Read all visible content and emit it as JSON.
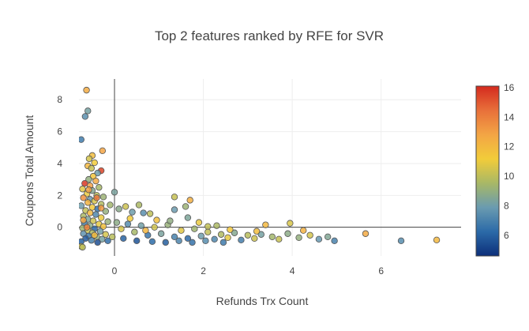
{
  "chart_data": {
    "type": "scatter",
    "title": "Top 2 features ranked by RFE for SVR",
    "xlabel": "Refunds Trx Count",
    "ylabel": "Coupons Total Amount",
    "xlim": [
      -0.8,
      7.8
    ],
    "ylim": [
      -1.8,
      9.3
    ],
    "x_ticks": [
      0,
      2,
      4,
      6
    ],
    "x_tick_labels": [
      "0",
      "2",
      "4",
      "6"
    ],
    "y_ticks": [
      0,
      2,
      4,
      6,
      8
    ],
    "y_tick_labels": [
      "0",
      "2",
      "4",
      "6",
      "8"
    ],
    "grid": true,
    "colorbar": {
      "range": [
        4.6,
        16.1
      ],
      "ticks": [
        6,
        8,
        10,
        12,
        14,
        16
      ],
      "tick_labels": [
        "6",
        "8",
        "10",
        "12",
        "14",
        "16"
      ],
      "colorscale": [
        "#0d2f7a",
        "#2b6aa8",
        "#6a9bb0",
        "#a8b866",
        "#f2cc3a",
        "#f3a545",
        "#e8703a",
        "#d42a1e"
      ]
    },
    "points": [
      {
        "x": -0.63,
        "y": 8.6,
        "c": 12.5
      },
      {
        "x": -0.6,
        "y": 7.3,
        "c": 8.2
      },
      {
        "x": -0.66,
        "y": 6.95,
        "c": 7.5
      },
      {
        "x": -0.75,
        "y": 5.5,
        "c": 6.8
      },
      {
        "x": -0.27,
        "y": 4.8,
        "c": 12.8
      },
      {
        "x": -0.5,
        "y": 4.5,
        "c": 11.8
      },
      {
        "x": -0.57,
        "y": 4.3,
        "c": 10.5
      },
      {
        "x": -0.45,
        "y": 4.05,
        "c": 11.2
      },
      {
        "x": -0.6,
        "y": 3.85,
        "c": 12.0
      },
      {
        "x": -0.52,
        "y": 3.7,
        "c": 10.2
      },
      {
        "x": -0.3,
        "y": 3.55,
        "c": 15.5
      },
      {
        "x": -0.38,
        "y": 3.4,
        "c": 8.0
      },
      {
        "x": -0.48,
        "y": 3.2,
        "c": 11.5
      },
      {
        "x": -0.58,
        "y": 3.0,
        "c": 9.0
      },
      {
        "x": -0.42,
        "y": 2.9,
        "c": 12.6
      },
      {
        "x": -0.67,
        "y": 2.75,
        "c": 15.8
      },
      {
        "x": -0.55,
        "y": 2.6,
        "c": 13.0
      },
      {
        "x": -0.35,
        "y": 2.5,
        "c": 9.5
      },
      {
        "x": -0.72,
        "y": 2.4,
        "c": 10.8
      },
      {
        "x": -0.5,
        "y": 2.3,
        "c": 8.6
      },
      {
        "x": 0.0,
        "y": 2.2,
        "c": 8.3
      },
      {
        "x": -0.62,
        "y": 2.1,
        "c": 11.0
      },
      {
        "x": -0.4,
        "y": 2.0,
        "c": 10.0
      },
      {
        "x": -0.25,
        "y": 1.9,
        "c": 9.2
      },
      {
        "x": -0.7,
        "y": 1.85,
        "c": 13.5
      },
      {
        "x": -0.55,
        "y": 1.75,
        "c": 7.8
      },
      {
        "x": -0.45,
        "y": 1.65,
        "c": 10.6
      },
      {
        "x": -0.6,
        "y": 1.55,
        "c": 12.2
      },
      {
        "x": -0.3,
        "y": 1.45,
        "c": 9.8
      },
      {
        "x": -0.75,
        "y": 1.35,
        "c": 8.0
      },
      {
        "x": -0.5,
        "y": 1.25,
        "c": 11.3
      },
      {
        "x": -0.38,
        "y": 1.15,
        "c": 6.5
      },
      {
        "x": -0.65,
        "y": 1.05,
        "c": 10.1
      },
      {
        "x": -0.2,
        "y": 1.0,
        "c": 9.0
      },
      {
        "x": -0.55,
        "y": 0.9,
        "c": 12.0
      },
      {
        "x": -0.42,
        "y": 0.8,
        "c": 7.2
      },
      {
        "x": -0.7,
        "y": 0.7,
        "c": 9.6
      },
      {
        "x": -0.3,
        "y": 0.6,
        "c": 11.0
      },
      {
        "x": -0.6,
        "y": 0.5,
        "c": 8.4
      },
      {
        "x": -0.48,
        "y": 0.4,
        "c": 10.4
      },
      {
        "x": -0.15,
        "y": 0.35,
        "c": 9.1
      },
      {
        "x": -0.68,
        "y": 0.25,
        "c": 7.0
      },
      {
        "x": -0.35,
        "y": 0.2,
        "c": 10.9
      },
      {
        "x": -0.55,
        "y": 0.1,
        "c": 8.8
      },
      {
        "x": -0.25,
        "y": 0.05,
        "c": 11.6
      },
      {
        "x": -0.72,
        "y": -0.05,
        "c": 9.3
      },
      {
        "x": -0.45,
        "y": -0.1,
        "c": 6.2
      },
      {
        "x": -0.6,
        "y": -0.2,
        "c": 10.2
      },
      {
        "x": -0.32,
        "y": -0.25,
        "c": 8.1
      },
      {
        "x": -0.5,
        "y": -0.35,
        "c": 9.7
      },
      {
        "x": -0.7,
        "y": -0.4,
        "c": 7.6
      },
      {
        "x": -0.2,
        "y": -0.45,
        "c": 10.5
      },
      {
        "x": -0.58,
        "y": -0.55,
        "c": 6.8
      },
      {
        "x": -0.4,
        "y": -0.6,
        "c": 9.0
      },
      {
        "x": -0.65,
        "y": -0.7,
        "c": 5.8
      },
      {
        "x": -0.28,
        "y": -0.75,
        "c": 8.2
      },
      {
        "x": -0.52,
        "y": -0.82,
        "c": 7.0
      },
      {
        "x": -0.15,
        "y": -0.85,
        "c": 6.4
      },
      {
        "x": -0.75,
        "y": -0.9,
        "c": 6.0
      },
      {
        "x": -0.38,
        "y": -0.95,
        "c": 5.5
      },
      {
        "x": -0.75,
        "y": -1.2,
        "c": 10.5
      },
      {
        "x": -0.72,
        "y": -1.25,
        "c": 10.0
      },
      {
        "x": -0.1,
        "y": 1.4,
        "c": 9.4
      },
      {
        "x": 0.1,
        "y": 1.15,
        "c": 8.7
      },
      {
        "x": 0.25,
        "y": 1.3,
        "c": 10.3
      },
      {
        "x": 0.4,
        "y": 0.95,
        "c": 8.0
      },
      {
        "x": 0.55,
        "y": 1.4,
        "c": 9.6
      },
      {
        "x": 0.65,
        "y": 0.9,
        "c": 7.5
      },
      {
        "x": 0.8,
        "y": 0.85,
        "c": 10.0
      },
      {
        "x": 1.35,
        "y": 1.9,
        "c": 10.2
      },
      {
        "x": 1.35,
        "y": 1.1,
        "c": 7.9
      },
      {
        "x": 1.6,
        "y": 1.3,
        "c": 9.2
      },
      {
        "x": 1.7,
        "y": 1.7,
        "c": 12.4
      },
      {
        "x": 1.65,
        "y": 0.6,
        "c": 8.4
      },
      {
        "x": 2.1,
        "y": 0.05,
        "c": 10.1
      },
      {
        "x": 0.05,
        "y": 0.3,
        "c": 8.8
      },
      {
        "x": 0.15,
        "y": -0.1,
        "c": 10.6
      },
      {
        "x": 0.3,
        "y": 0.2,
        "c": 7.4
      },
      {
        "x": 0.45,
        "y": -0.3,
        "c": 9.5
      },
      {
        "x": 0.6,
        "y": 0.1,
        "c": 8.1
      },
      {
        "x": 0.75,
        "y": -0.5,
        "c": 6.6
      },
      {
        "x": 0.9,
        "y": 0.0,
        "c": 10.4
      },
      {
        "x": 1.05,
        "y": -0.4,
        "c": 8.3
      },
      {
        "x": 1.2,
        "y": 0.15,
        "c": 9.1
      },
      {
        "x": 1.35,
        "y": -0.6,
        "c": 7.0
      },
      {
        "x": 1.5,
        "y": -0.2,
        "c": 10.8
      },
      {
        "x": 1.65,
        "y": -0.7,
        "c": 6.2
      },
      {
        "x": 1.8,
        "y": -0.1,
        "c": 9.3
      },
      {
        "x": 1.95,
        "y": -0.55,
        "c": 8.0
      },
      {
        "x": 2.1,
        "y": -0.3,
        "c": 10.1
      },
      {
        "x": 2.25,
        "y": -0.75,
        "c": 7.2
      },
      {
        "x": 2.4,
        "y": -0.45,
        "c": 9.7
      },
      {
        "x": 2.55,
        "y": -0.65,
        "c": 10.9
      },
      {
        "x": 2.7,
        "y": -0.35,
        "c": 8.6
      },
      {
        "x": 2.85,
        "y": -0.8,
        "c": 6.9
      },
      {
        "x": 3.0,
        "y": -0.5,
        "c": 9.9
      },
      {
        "x": 3.15,
        "y": -0.7,
        "c": 10.3
      },
      {
        "x": 3.3,
        "y": -0.45,
        "c": 8.2
      },
      {
        "x": 3.4,
        "y": 0.15,
        "c": 12.0
      },
      {
        "x": 3.55,
        "y": -0.6,
        "c": 9.4
      },
      {
        "x": 3.7,
        "y": -0.75,
        "c": 10.2
      },
      {
        "x": 3.9,
        "y": -0.4,
        "c": 8.8
      },
      {
        "x": 3.95,
        "y": 0.25,
        "c": 10.6
      },
      {
        "x": 4.15,
        "y": -0.65,
        "c": 9.0
      },
      {
        "x": 4.25,
        "y": -0.2,
        "c": 12.3
      },
      {
        "x": 4.4,
        "y": -0.5,
        "c": 10.5
      },
      {
        "x": 4.6,
        "y": -0.75,
        "c": 7.8
      },
      {
        "x": 4.8,
        "y": -0.6,
        "c": 8.5
      },
      {
        "x": 4.95,
        "y": -0.85,
        "c": 7.0
      },
      {
        "x": 5.65,
        "y": -0.4,
        "c": 12.6
      },
      {
        "x": 6.45,
        "y": -0.85,
        "c": 7.4
      },
      {
        "x": 7.25,
        "y": -0.8,
        "c": 12.0
      },
      {
        "x": 0.2,
        "y": -0.7,
        "c": 6.0
      },
      {
        "x": 0.5,
        "y": -0.85,
        "c": 5.6
      },
      {
        "x": 0.85,
        "y": -0.9,
        "c": 6.3
      },
      {
        "x": 1.15,
        "y": -0.95,
        "c": 5.9
      },
      {
        "x": 1.45,
        "y": -0.85,
        "c": 7.1
      },
      {
        "x": 1.75,
        "y": -0.95,
        "c": 6.5
      },
      {
        "x": 2.05,
        "y": -0.85,
        "c": 7.4
      },
      {
        "x": 2.45,
        "y": -0.95,
        "c": 6.8
      },
      {
        "x": 0.35,
        "y": 0.55,
        "c": 11.2
      },
      {
        "x": 0.95,
        "y": 0.45,
        "c": 11.7
      },
      {
        "x": 1.25,
        "y": 0.4,
        "c": 8.9
      },
      {
        "x": 1.9,
        "y": 0.3,
        "c": 11.0
      },
      {
        "x": 2.3,
        "y": 0.1,
        "c": 9.6
      },
      {
        "x": -0.05,
        "y": -0.6,
        "c": 9.9
      },
      {
        "x": 0.7,
        "y": -0.2,
        "c": 12.1
      },
      {
        "x": 2.6,
        "y": -0.15,
        "c": 11.4
      },
      {
        "x": 3.2,
        "y": -0.25,
        "c": 11.8
      },
      {
        "x": -0.62,
        "y": 0.0,
        "c": 13.9
      },
      {
        "x": -0.4,
        "y": 1.85,
        "c": 14.2
      },
      {
        "x": -0.58,
        "y": 2.35,
        "c": 12.9
      },
      {
        "x": -0.7,
        "y": 0.45,
        "c": 12.7
      },
      {
        "x": -0.45,
        "y": -0.5,
        "c": 11.9
      },
      {
        "x": -0.3,
        "y": 1.2,
        "c": 13.2
      }
    ]
  }
}
